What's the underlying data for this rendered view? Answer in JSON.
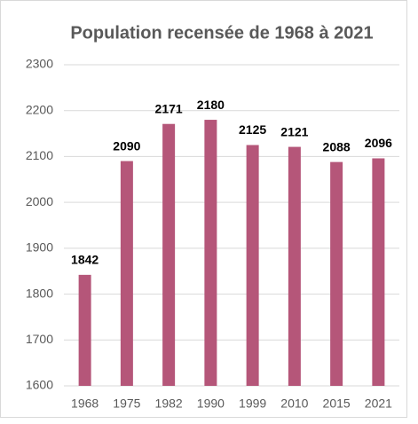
{
  "chart_data": {
    "type": "bar",
    "title": "Population recensée de 1968 à 2021",
    "categories": [
      "1968",
      "1975",
      "1982",
      "1990",
      "1999",
      "2010",
      "2015",
      "2021"
    ],
    "values": [
      1842,
      2090,
      2171,
      2180,
      2125,
      2121,
      2088,
      2096
    ],
    "color": "#b55679",
    "ylim": [
      1600,
      2300
    ],
    "yticks": [
      1600,
      1700,
      1800,
      1900,
      2000,
      2100,
      2200,
      2300
    ],
    "grid": true
  }
}
